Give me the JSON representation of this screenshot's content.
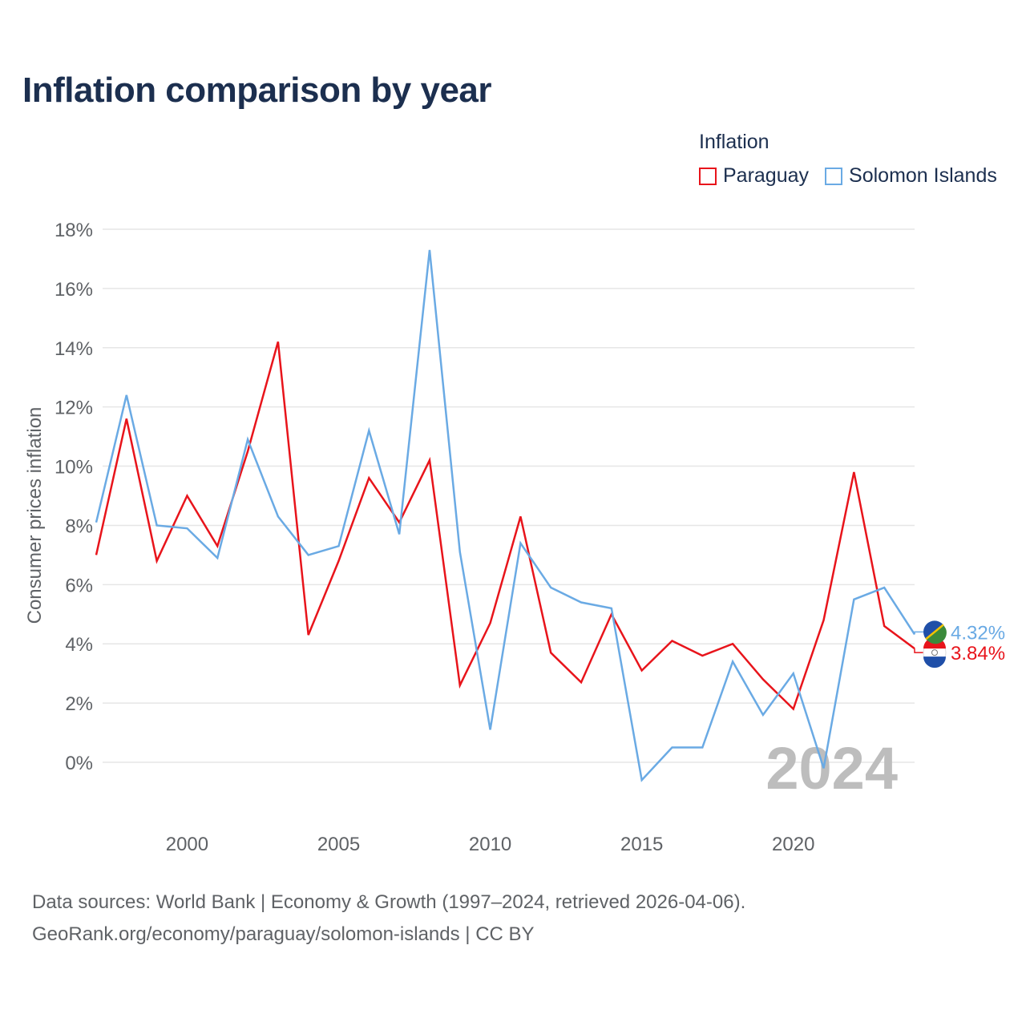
{
  "title": "Inflation comparison by year",
  "legend": {
    "title": "Inflation",
    "items": [
      {
        "label": "Paraguay",
        "color": "#e8141b"
      },
      {
        "label": "Solomon Islands",
        "color": "#6aaae4"
      }
    ]
  },
  "footer": {
    "line1": "Data sources: World Bank | Economy & Growth (1997–2024, retrieved 2026-04-06).",
    "line2": "GeoRank.org/economy/paraguay/solomon-islands | CC BY"
  },
  "chart_data": {
    "type": "line",
    "title": "Inflation comparison by year",
    "ylabel": "Consumer prices inflation",
    "xlabel": "",
    "xlim": [
      1997,
      2024
    ],
    "ylim": [
      -1.5,
      18
    ],
    "yticks": [
      0,
      2,
      4,
      6,
      8,
      10,
      12,
      14,
      16,
      18
    ],
    "ytick_labels": [
      "0%",
      "2%",
      "4%",
      "6%",
      "8%",
      "10%",
      "12%",
      "14%",
      "16%",
      "18%"
    ],
    "xticks": [
      2000,
      2005,
      2010,
      2015,
      2020
    ],
    "xtick_labels": [
      "2000",
      "2005",
      "2010",
      "2015",
      "2020"
    ],
    "grid": true,
    "year_watermark": "2024",
    "x": [
      1997,
      1998,
      1999,
      2000,
      2001,
      2002,
      2003,
      2004,
      2005,
      2006,
      2007,
      2008,
      2009,
      2010,
      2011,
      2012,
      2013,
      2014,
      2015,
      2016,
      2017,
      2018,
      2019,
      2020,
      2021,
      2022,
      2023,
      2024
    ],
    "series": [
      {
        "name": "Paraguay",
        "color": "#e8141b",
        "values": [
          7.0,
          11.6,
          6.8,
          9.0,
          7.3,
          10.5,
          14.2,
          4.3,
          6.8,
          9.6,
          8.1,
          10.2,
          2.6,
          4.7,
          8.3,
          3.7,
          2.7,
          5.0,
          3.1,
          4.1,
          3.6,
          4.0,
          2.8,
          1.8,
          4.8,
          9.8,
          4.6,
          3.84
        ],
        "end_label": "3.84%"
      },
      {
        "name": "Solomon Islands",
        "color": "#6aaae4",
        "values": [
          8.1,
          12.4,
          8.0,
          7.9,
          6.9,
          10.9,
          8.3,
          7.0,
          7.3,
          11.2,
          7.7,
          17.3,
          7.1,
          1.1,
          7.4,
          5.9,
          5.4,
          5.2,
          -0.6,
          0.5,
          0.5,
          3.4,
          1.6,
          3.0,
          -0.2,
          5.5,
          5.9,
          4.32
        ],
        "end_label": "4.32%"
      }
    ]
  }
}
